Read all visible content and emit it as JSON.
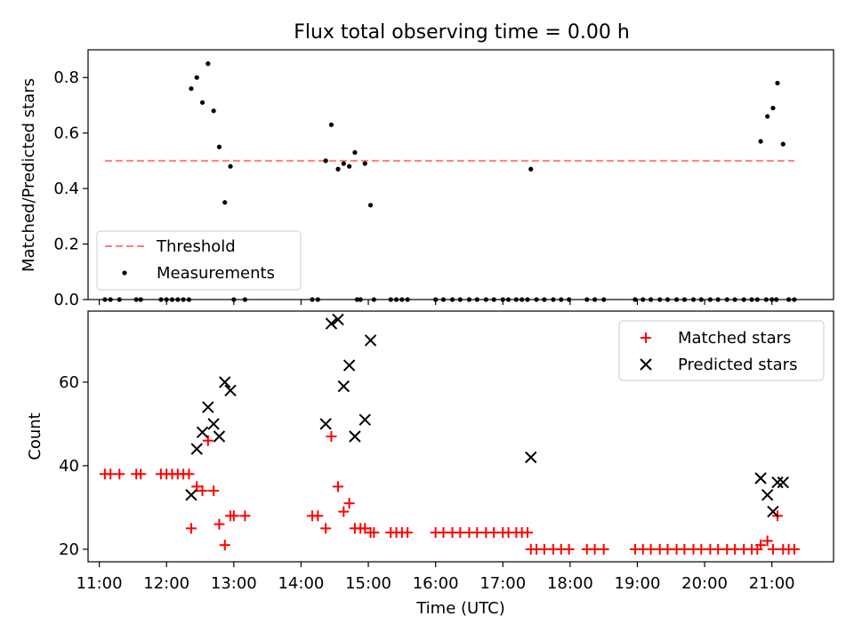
{
  "figure": {
    "title": "Flux total observing time = 0.00 h",
    "xlabel": "Time (UTC)",
    "x_tick_labels": [
      "11:00",
      "12:00",
      "13:00",
      "14:00",
      "15:00",
      "16:00",
      "17:00",
      "18:00",
      "19:00",
      "20:00",
      "21:00"
    ]
  },
  "chart_data": [
    {
      "type": "scatter",
      "ylabel": "Matched/Predicted stars",
      "ylim": [
        0,
        0.9
      ],
      "y_ticks": [
        "0.0",
        "0.2",
        "0.4",
        "0.6",
        "0.8"
      ],
      "xlim": [
        "10:50",
        "21:55"
      ],
      "legend_position": "lower-left",
      "threshold": {
        "name": "Threshold",
        "value": 0.5,
        "x_range": [
          "11:05",
          "21:20"
        ],
        "color": "#ff7f7f"
      },
      "series": [
        {
          "name": "Measurements",
          "color": "#000000",
          "points": [
            [
              "11:05",
              0.0
            ],
            [
              "11:10",
              0.0
            ],
            [
              "11:18",
              0.0
            ],
            [
              "11:33",
              0.0
            ],
            [
              "11:37",
              0.0
            ],
            [
              "11:55",
              0.0
            ],
            [
              "12:00",
              0.0
            ],
            [
              "12:05",
              0.0
            ],
            [
              "12:10",
              0.0
            ],
            [
              "12:15",
              0.0
            ],
            [
              "12:20",
              0.0
            ],
            [
              "12:22",
              0.76
            ],
            [
              "12:27",
              0.8
            ],
            [
              "12:32",
              0.71
            ],
            [
              "12:37",
              0.85
            ],
            [
              "12:42",
              0.68
            ],
            [
              "12:47",
              0.55
            ],
            [
              "12:52",
              0.35
            ],
            [
              "12:57",
              0.48
            ],
            [
              "13:00",
              0.0
            ],
            [
              "13:10",
              0.0
            ],
            [
              "14:10",
              0.0
            ],
            [
              "14:15",
              0.0
            ],
            [
              "14:22",
              0.5
            ],
            [
              "14:27",
              0.63
            ],
            [
              "14:33",
              0.47
            ],
            [
              "14:38",
              0.49
            ],
            [
              "14:43",
              0.48
            ],
            [
              "14:48",
              0.53
            ],
            [
              "14:50",
              0.0
            ],
            [
              "14:53",
              0.0
            ],
            [
              "14:57",
              0.49
            ],
            [
              "15:02",
              0.34
            ],
            [
              "15:05",
              0.0
            ],
            [
              "15:20",
              0.0
            ],
            [
              "15:25",
              0.0
            ],
            [
              "15:30",
              0.0
            ],
            [
              "15:35",
              0.0
            ],
            [
              "16:00",
              0.0
            ],
            [
              "16:07",
              0.0
            ],
            [
              "16:15",
              0.0
            ],
            [
              "16:22",
              0.0
            ],
            [
              "16:30",
              0.0
            ],
            [
              "16:37",
              0.0
            ],
            [
              "16:45",
              0.0
            ],
            [
              "16:52",
              0.0
            ],
            [
              "17:00",
              0.0
            ],
            [
              "17:05",
              0.0
            ],
            [
              "17:12",
              0.0
            ],
            [
              "17:17",
              0.0
            ],
            [
              "17:22",
              0.0
            ],
            [
              "17:25",
              0.47
            ],
            [
              "17:30",
              0.0
            ],
            [
              "17:37",
              0.0
            ],
            [
              "17:45",
              0.0
            ],
            [
              "17:52",
              0.0
            ],
            [
              "17:59",
              0.0
            ],
            [
              "18:15",
              0.0
            ],
            [
              "18:22",
              0.0
            ],
            [
              "18:30",
              0.0
            ],
            [
              "18:58",
              0.0
            ],
            [
              "19:05",
              0.0
            ],
            [
              "19:12",
              0.0
            ],
            [
              "19:20",
              0.0
            ],
            [
              "19:27",
              0.0
            ],
            [
              "19:35",
              0.0
            ],
            [
              "19:42",
              0.0
            ],
            [
              "19:50",
              0.0
            ],
            [
              "19:57",
              0.0
            ],
            [
              "20:05",
              0.0
            ],
            [
              "20:12",
              0.0
            ],
            [
              "20:20",
              0.0
            ],
            [
              "20:27",
              0.0
            ],
            [
              "20:35",
              0.0
            ],
            [
              "20:42",
              0.0
            ],
            [
              "20:47",
              0.0
            ],
            [
              "20:50",
              0.57
            ],
            [
              "20:55",
              0.0
            ],
            [
              "20:56",
              0.66
            ],
            [
              "21:00",
              0.0
            ],
            [
              "21:01",
              0.69
            ],
            [
              "21:04",
              0.0
            ],
            [
              "21:05",
              0.78
            ],
            [
              "21:10",
              0.56
            ],
            [
              "21:15",
              0.0
            ],
            [
              "21:20",
              0.0
            ]
          ]
        }
      ],
      "legend": [
        "Threshold",
        "Measurements"
      ]
    },
    {
      "type": "scatter",
      "ylabel": "Count",
      "ylim": [
        17,
        77
      ],
      "y_ticks": [
        "20",
        "40",
        "60"
      ],
      "xlim": [
        "10:50",
        "21:55"
      ],
      "legend_position": "top-right",
      "series": [
        {
          "name": "Matched stars",
          "marker": "plus",
          "color": "#ff0000",
          "points": [
            [
              "11:05",
              38
            ],
            [
              "11:10",
              38
            ],
            [
              "11:18",
              38
            ],
            [
              "11:33",
              38
            ],
            [
              "11:37",
              38
            ],
            [
              "11:55",
              38
            ],
            [
              "12:00",
              38
            ],
            [
              "12:05",
              38
            ],
            [
              "12:10",
              38
            ],
            [
              "12:15",
              38
            ],
            [
              "12:20",
              38
            ],
            [
              "12:22",
              25
            ],
            [
              "12:27",
              35
            ],
            [
              "12:32",
              34
            ],
            [
              "12:37",
              46
            ],
            [
              "12:42",
              34
            ],
            [
              "12:47",
              26
            ],
            [
              "12:52",
              21
            ],
            [
              "12:57",
              28
            ],
            [
              "13:00",
              28
            ],
            [
              "13:10",
              28
            ],
            [
              "14:10",
              28
            ],
            [
              "14:15",
              28
            ],
            [
              "14:22",
              25
            ],
            [
              "14:27",
              47
            ],
            [
              "14:33",
              35
            ],
            [
              "14:38",
              29
            ],
            [
              "14:43",
              31
            ],
            [
              "14:48",
              25
            ],
            [
              "14:53",
              25
            ],
            [
              "14:57",
              25
            ],
            [
              "15:02",
              24
            ],
            [
              "15:05",
              24
            ],
            [
              "15:20",
              24
            ],
            [
              "15:25",
              24
            ],
            [
              "15:30",
              24
            ],
            [
              "15:35",
              24
            ],
            [
              "16:00",
              24
            ],
            [
              "16:07",
              24
            ],
            [
              "16:15",
              24
            ],
            [
              "16:22",
              24
            ],
            [
              "16:30",
              24
            ],
            [
              "16:37",
              24
            ],
            [
              "16:45",
              24
            ],
            [
              "16:52",
              24
            ],
            [
              "17:00",
              24
            ],
            [
              "17:05",
              24
            ],
            [
              "17:12",
              24
            ],
            [
              "17:17",
              24
            ],
            [
              "17:22",
              24
            ],
            [
              "17:25",
              20
            ],
            [
              "17:30",
              20
            ],
            [
              "17:37",
              20
            ],
            [
              "17:45",
              20
            ],
            [
              "17:52",
              20
            ],
            [
              "17:59",
              20
            ],
            [
              "18:15",
              20
            ],
            [
              "18:22",
              20
            ],
            [
              "18:30",
              20
            ],
            [
              "18:58",
              20
            ],
            [
              "19:05",
              20
            ],
            [
              "19:12",
              20
            ],
            [
              "19:20",
              20
            ],
            [
              "19:27",
              20
            ],
            [
              "19:35",
              20
            ],
            [
              "19:42",
              20
            ],
            [
              "19:50",
              20
            ],
            [
              "19:57",
              20
            ],
            [
              "20:05",
              20
            ],
            [
              "20:12",
              20
            ],
            [
              "20:20",
              20
            ],
            [
              "20:27",
              20
            ],
            [
              "20:35",
              20
            ],
            [
              "20:42",
              20
            ],
            [
              "20:47",
              20
            ],
            [
              "20:50",
              21
            ],
            [
              "20:56",
              22
            ],
            [
              "21:01",
              20
            ],
            [
              "21:05",
              28
            ],
            [
              "21:10",
              20
            ],
            [
              "21:15",
              20
            ],
            [
              "21:20",
              20
            ]
          ]
        },
        {
          "name": "Predicted stars",
          "marker": "x",
          "color": "#000000",
          "points": [
            [
              "12:22",
              33
            ],
            [
              "12:27",
              44
            ],
            [
              "12:32",
              48
            ],
            [
              "12:37",
              54
            ],
            [
              "12:42",
              50
            ],
            [
              "12:47",
              47
            ],
            [
              "12:52",
              60
            ],
            [
              "12:57",
              58
            ],
            [
              "14:22",
              50
            ],
            [
              "14:27",
              74
            ],
            [
              "14:33",
              75
            ],
            [
              "14:38",
              59
            ],
            [
              "14:43",
              64
            ],
            [
              "14:48",
              47
            ],
            [
              "14:57",
              51
            ],
            [
              "15:02",
              70
            ],
            [
              "17:25",
              42
            ],
            [
              "20:50",
              37
            ],
            [
              "20:56",
              33
            ],
            [
              "21:01",
              29
            ],
            [
              "21:05",
              36
            ],
            [
              "21:10",
              36
            ]
          ]
        }
      ],
      "legend": [
        "Matched stars",
        "Predicted stars"
      ]
    }
  ]
}
